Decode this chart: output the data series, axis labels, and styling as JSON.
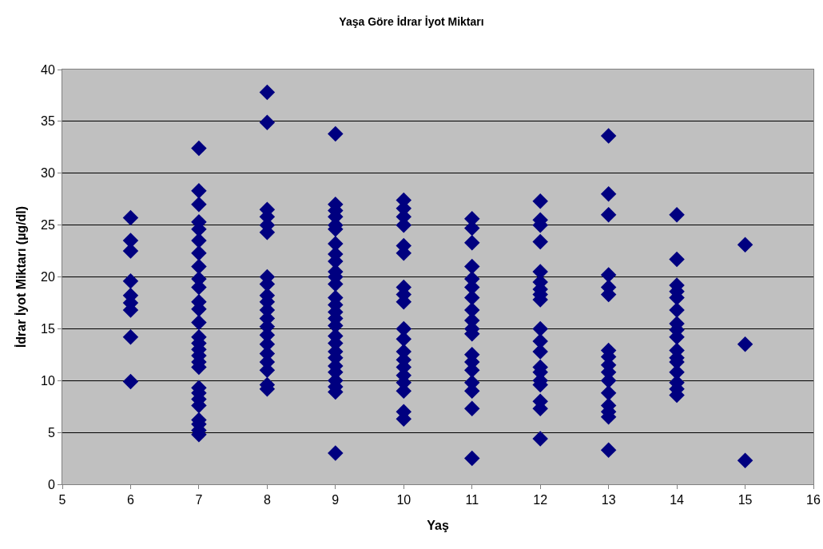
{
  "chart_data": {
    "type": "scatter",
    "title": "Yaşa Göre İdrar İyot Miktarı",
    "xlabel": "Yaş",
    "ylabel": "İdrar İyot Miktarı (µg/dl)",
    "marker": "diamond",
    "grid": "y",
    "xlim": [
      5,
      16
    ],
    "xticks": [
      5,
      6,
      7,
      8,
      9,
      10,
      11,
      12,
      13,
      14,
      15,
      16
    ],
    "ylim": [
      0,
      40
    ],
    "yticks": [
      0,
      5,
      10,
      15,
      20,
      25,
      30,
      35,
      40
    ],
    "series": [
      {
        "color": "#000080",
        "x": [
          6,
          6,
          6,
          6,
          6,
          6,
          6,
          6,
          6,
          7,
          7,
          7,
          7,
          7,
          7,
          7,
          7,
          7,
          7,
          7,
          7,
          7,
          7,
          7,
          7,
          7,
          7,
          7,
          7,
          7,
          7,
          7,
          7,
          7,
          7,
          7,
          8,
          8,
          8,
          8,
          8,
          8,
          8,
          8,
          8,
          8,
          8,
          8,
          8,
          8,
          8,
          8,
          8,
          8,
          8,
          8,
          9,
          9,
          9,
          9,
          9,
          9,
          9,
          9,
          9,
          9,
          9,
          9,
          9,
          9,
          9,
          9,
          9,
          9,
          9,
          9,
          9,
          9,
          9,
          9,
          9,
          9,
          9,
          10,
          10,
          10,
          10,
          10,
          10,
          10,
          10,
          10,
          10,
          10,
          10,
          10,
          10,
          10,
          10,
          10,
          10,
          10,
          11,
          11,
          11,
          11,
          11,
          11,
          11,
          11,
          11,
          11,
          11,
          11,
          11,
          11,
          11,
          11,
          11,
          11,
          12,
          12,
          12,
          12,
          12,
          12,
          12,
          12,
          12,
          12,
          12,
          12,
          12,
          12,
          12,
          12,
          12,
          12,
          12,
          13,
          13,
          13,
          13,
          13,
          13,
          13,
          13,
          13,
          13,
          13,
          13,
          13,
          13,
          13,
          13,
          14,
          14,
          14,
          14,
          14,
          14,
          14,
          14,
          14,
          14,
          14,
          14,
          14,
          14,
          14,
          14,
          15,
          15,
          15
        ],
        "values": [
          25.7,
          23.5,
          22.5,
          19.6,
          18.2,
          17.5,
          16.8,
          14.2,
          9.9,
          32.4,
          28.3,
          27.0,
          25.3,
          24.6,
          23.5,
          22.3,
          21.0,
          19.8,
          19.0,
          17.6,
          16.9,
          15.6,
          14.2,
          13.6,
          13.0,
          12.4,
          11.8,
          11.3,
          9.3,
          8.8,
          8.2,
          7.6,
          6.2,
          5.8,
          5.2,
          4.8,
          37.8,
          34.9,
          26.5,
          25.8,
          25.0,
          24.3,
          20.0,
          19.3,
          18.2,
          17.6,
          16.8,
          16.0,
          15.2,
          14.4,
          13.5,
          12.6,
          11.8,
          11.0,
          9.6,
          9.2,
          33.8,
          27.0,
          26.4,
          25.8,
          25.0,
          24.6,
          23.2,
          22.2,
          21.5,
          20.5,
          20.0,
          19.3,
          18.0,
          17.3,
          16.6,
          16.0,
          15.3,
          14.3,
          13.6,
          12.8,
          12.2,
          11.4,
          10.8,
          10.0,
          9.4,
          8.9,
          3.0,
          27.4,
          26.6,
          25.8,
          25.0,
          23.0,
          22.3,
          19.0,
          18.3,
          17.6,
          15.0,
          14.0,
          12.8,
          12.0,
          11.3,
          10.5,
          9.8,
          9.0,
          7.0,
          6.3,
          25.6,
          24.7,
          23.3,
          21.0,
          19.8,
          19.0,
          18.0,
          16.8,
          15.8,
          15.0,
          14.5,
          12.5,
          11.8,
          11.0,
          9.8,
          9.0,
          7.3,
          2.5,
          27.3,
          25.5,
          25.0,
          23.4,
          20.5,
          19.5,
          18.8,
          18.3,
          17.8,
          15.0,
          13.8,
          12.8,
          11.3,
          10.8,
          10.0,
          9.6,
          8.0,
          7.3,
          4.4,
          33.6,
          28.0,
          26.0,
          20.2,
          19.0,
          18.3,
          12.9,
          12.3,
          11.5,
          10.8,
          10.0,
          8.8,
          7.6,
          7.0,
          6.5,
          3.3,
          26.0,
          21.7,
          19.2,
          18.6,
          18.0,
          16.8,
          15.5,
          14.9,
          14.2,
          12.9,
          12.2,
          11.8,
          10.8,
          9.8,
          9.2,
          8.6,
          23.1,
          13.5,
          2.3
        ]
      }
    ]
  }
}
